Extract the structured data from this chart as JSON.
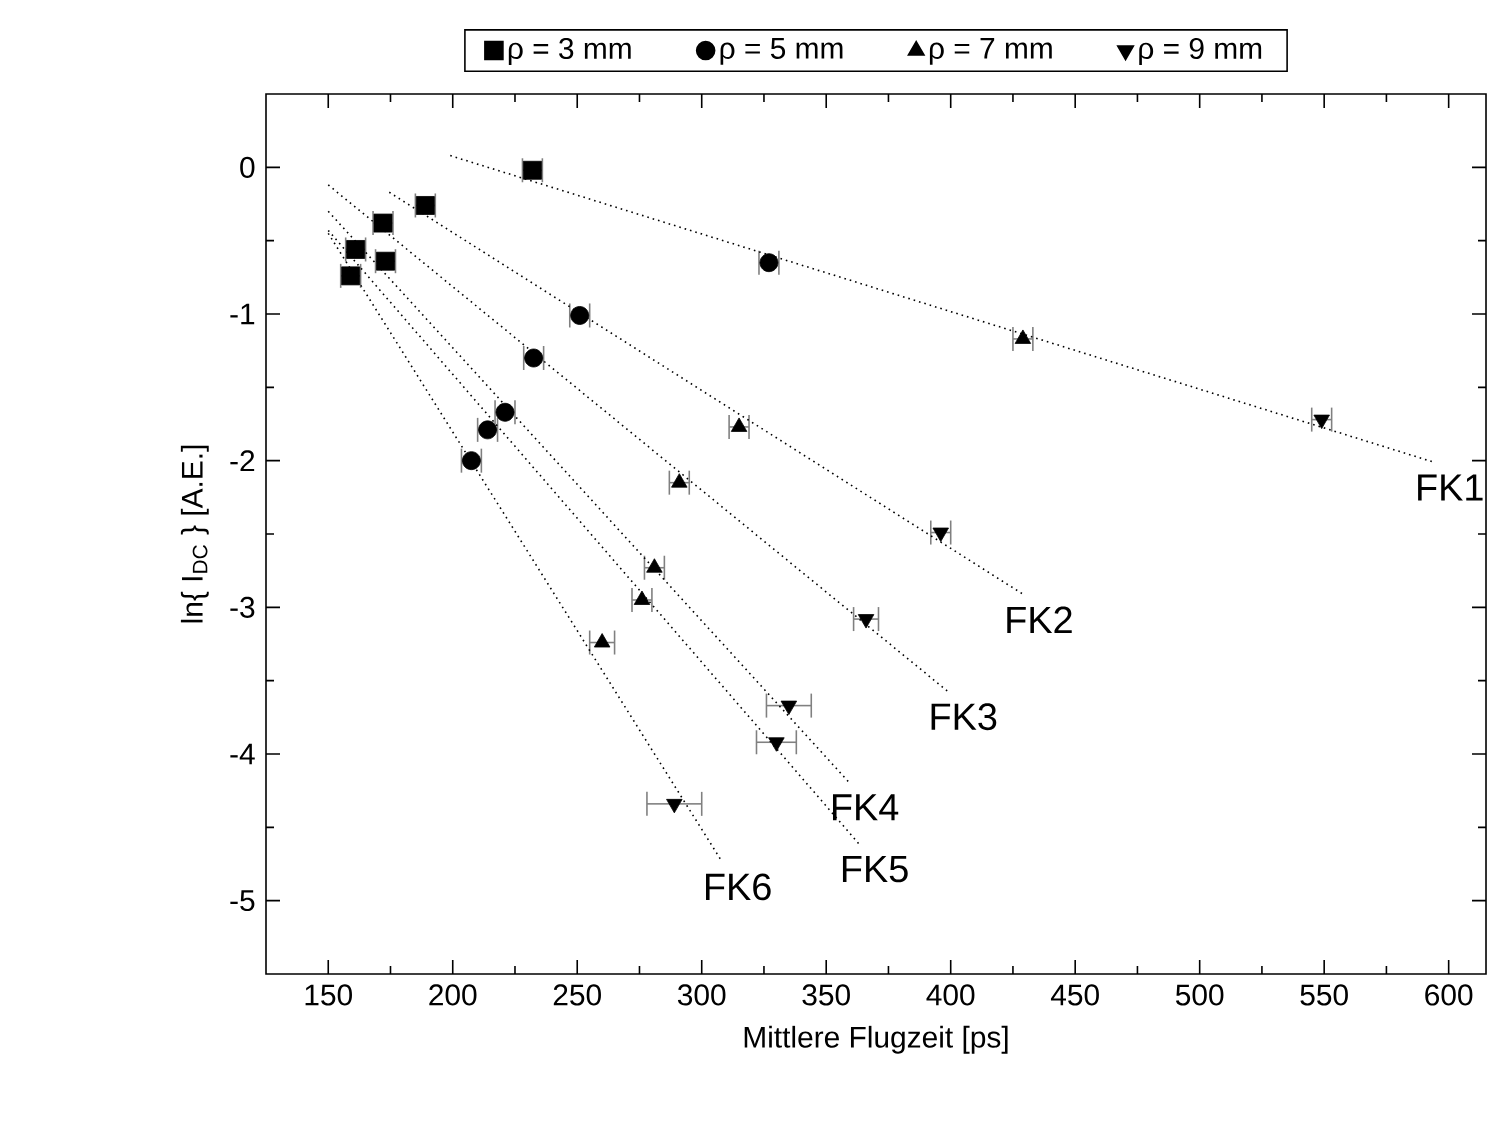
{
  "chart_data": {
    "type": "scatter",
    "xlabel": "Mittlere Flugzeit [ps]",
    "ylabel": "ln{ I$_{DC}$ }  [A.E.]",
    "xlim": [
      125,
      615
    ],
    "ylim": [
      -5.5,
      0.5
    ],
    "xticks": [
      150,
      200,
      250,
      300,
      350,
      400,
      450,
      500,
      550,
      600
    ],
    "yticks": [
      -5,
      -4,
      -3,
      -2,
      -1,
      0
    ],
    "legend": "top",
    "series": [
      {
        "name": "ρ = 3 mm",
        "marker": "square",
        "color": "#000000",
        "x": [
          232,
          189,
          172,
          161,
          173,
          159
        ],
        "values": [
          -0.02,
          -0.26,
          -0.38,
          -0.56,
          -0.64,
          -0.74
        ],
        "xerrors": [
          4,
          4,
          4,
          4,
          4,
          4
        ]
      },
      {
        "name": "ρ = 5 mm",
        "marker": "circle",
        "color": "#000000",
        "x": [
          327,
          251,
          232.5,
          221,
          214,
          207.5
        ],
        "values": [
          -0.65,
          -1.01,
          -1.3,
          -1.67,
          -1.79,
          -2.0
        ],
        "xerrors": [
          4,
          4,
          4,
          4,
          4,
          4
        ]
      },
      {
        "name": "ρ = 7 mm",
        "marker": "triangle",
        "color": "#000000",
        "x": [
          429,
          315,
          291,
          281,
          276,
          260
        ],
        "values": [
          -1.17,
          -1.77,
          -2.15,
          -2.73,
          -2.95,
          -3.24
        ],
        "xerrors": [
          4,
          4,
          4,
          4,
          4,
          5
        ]
      },
      {
        "name": "ρ = 9 mm",
        "marker": "triangle-down",
        "color": "#000000",
        "x": [
          549,
          396,
          366,
          335,
          330,
          289
        ],
        "values": [
          -1.72,
          -2.49,
          -3.08,
          -3.67,
          -3.92,
          -4.34
        ],
        "xerrors": [
          4,
          4,
          5,
          9,
          8,
          11
        ]
      },
      {
        "name": "FK1",
        "type": "line",
        "line_style": "dotted",
        "marker": "none",
        "color": "#000000",
        "x": [
          199,
          594
        ],
        "values": [
          0.08,
          -2.01
        ]
      },
      {
        "name": "FK2",
        "type": "line",
        "line_style": "dotted",
        "marker": "none",
        "color": "#000000",
        "x": [
          174.5,
          429
        ],
        "values": [
          -0.17,
          -2.91
        ]
      },
      {
        "name": "FK3",
        "type": "line",
        "line_style": "dotted",
        "marker": "none",
        "color": "#000000",
        "x": [
          150,
          398.6
        ],
        "values": [
          -0.12,
          -3.57
        ]
      },
      {
        "name": "FK4",
        "type": "line",
        "line_style": "dotted",
        "marker": "none",
        "color": "#000000",
        "x": [
          150,
          359
        ],
        "values": [
          -0.3,
          -4.19
        ]
      },
      {
        "name": "FK5",
        "type": "line",
        "line_style": "dotted",
        "marker": "none",
        "color": "#000000",
        "x": [
          150,
          363
        ],
        "values": [
          -0.43,
          -4.61
        ]
      },
      {
        "name": "FK6",
        "type": "line",
        "line_style": "dotted",
        "marker": "none",
        "color": "#000000",
        "x": [
          150,
          308
        ],
        "values": [
          -0.45,
          -4.73
        ]
      }
    ]
  }
}
